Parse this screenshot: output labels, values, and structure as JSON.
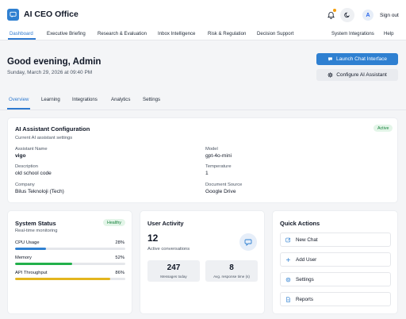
{
  "app": {
    "title": "AI CEO Office"
  },
  "topbar": {
    "user_initial": "A",
    "signout_label": "Sign out"
  },
  "nav": {
    "items": [
      "Dashboard",
      "Executive Briefing",
      "Research & Evaluation",
      "Inbox Intelligence",
      "Risk & Regulation",
      "Decision Support"
    ],
    "right_items": [
      "System Integrations",
      "Help"
    ]
  },
  "header": {
    "greeting": "Good evening, Admin",
    "date": "Sunday, March 29, 2026 at 09:40 PM",
    "launch_label": "Launch Chat Interface",
    "configure_label": "Configure AI Assistant"
  },
  "subtabs": [
    "Overview",
    "Learning",
    "Integrations",
    "Analytics",
    "Settings"
  ],
  "config": {
    "title": "AI Assistant Configuration",
    "subtitle": "Current AI assistant settings",
    "status": "Active",
    "fields": [
      {
        "label": "Assistant Name",
        "value": "vigo"
      },
      {
        "label": "Model",
        "value": "gpt-4o-mini"
      },
      {
        "label": "Description",
        "value": "old school code"
      },
      {
        "label": "Temperature",
        "value": "1"
      },
      {
        "label": "Company",
        "value": "Bilus Teknoloji (Tech)"
      },
      {
        "label": "Document Source",
        "value": "Google Drive"
      }
    ]
  },
  "system_status": {
    "title": "System Status",
    "subtitle": "Real-time monitoring",
    "badge": "Healthy",
    "metrics": [
      {
        "label": "CPU Usage",
        "value": "28%",
        "percent": 28,
        "color": "#2f80d1"
      },
      {
        "label": "Memory",
        "value": "52%",
        "percent": 52,
        "color": "#22b04b"
      },
      {
        "label": "API Throughput",
        "value": "86%",
        "percent": 86,
        "color": "#e3b51e"
      }
    ]
  },
  "activity": {
    "title": "User Activity",
    "conversations": "12",
    "conversations_label": "Active conversations",
    "messages": "247",
    "messages_label": "Messages today",
    "response": "8",
    "response_label": "Avg. response time (s)"
  },
  "quick_actions": {
    "title": "Quick Actions",
    "items": [
      {
        "label": "New Chat",
        "icon": "edit-icon"
      },
      {
        "label": "Add User",
        "icon": "plus-icon"
      },
      {
        "label": "Settings",
        "icon": "gear-icon"
      },
      {
        "label": "Reports",
        "icon": "document-icon"
      }
    ]
  },
  "colors": {
    "accent": "#2f80d1",
    "success": "#16803c"
  }
}
